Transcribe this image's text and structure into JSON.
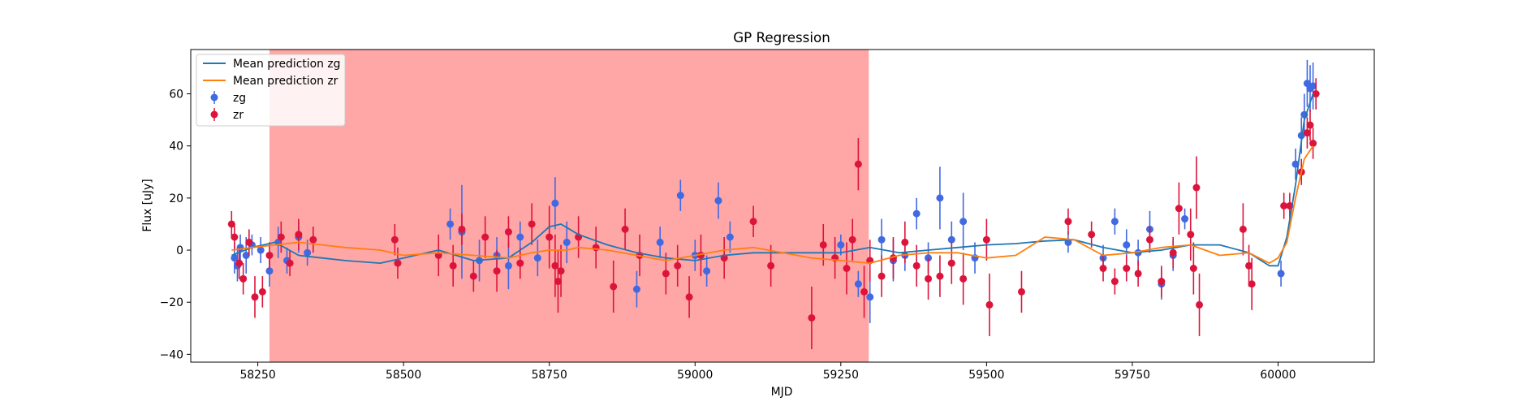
{
  "chart_data": {
    "type": "scatter",
    "title": "GP Regression",
    "xlabel": "MJD",
    "ylabel": "Flux [uJy]",
    "xlim": [
      58135,
      60165
    ],
    "ylim": [
      -43,
      77
    ],
    "xticks": [
      58250,
      58500,
      58750,
      59000,
      59250,
      59500,
      59750,
      60000
    ],
    "yticks": [
      -40,
      -20,
      0,
      20,
      40,
      60
    ],
    "shaded_region": {
      "x": [
        58270,
        59298
      ],
      "color": "#ff0000",
      "alpha": 0.35
    },
    "legend": {
      "location": "top-left",
      "entries": [
        "Mean prediction zg",
        "Mean prediction zr",
        "zg",
        "zr"
      ]
    },
    "series": [
      {
        "name": "Mean prediction zg",
        "kind": "line",
        "color": "#1f77b4",
        "x": [
          58205,
          58240,
          58280,
          58320,
          58360,
          58400,
          58460,
          58500,
          58560,
          58620,
          58680,
          58720,
          58750,
          58770,
          58800,
          58850,
          58900,
          58950,
          59000,
          59050,
          59100,
          59150,
          59200,
          59250,
          59300,
          59350,
          59400,
          59450,
          59500,
          59550,
          59600,
          59650,
          59700,
          59750,
          59800,
          59850,
          59900,
          59950,
          59985,
          60000,
          60015,
          60030,
          60045,
          60060
        ],
        "y": [
          -2,
          1,
          3,
          -2,
          -3,
          -4,
          -5,
          -3,
          0,
          -4,
          -3,
          3,
          9,
          10,
          6,
          2,
          -1,
          -3,
          -4,
          -2,
          -1,
          -1,
          -1,
          -1,
          1,
          -1,
          0,
          1,
          2,
          2.5,
          3.5,
          4,
          1,
          -1,
          0,
          2,
          2,
          -1,
          -6,
          -6,
          5,
          25,
          50,
          60
        ]
      },
      {
        "name": "Mean prediction zr",
        "kind": "line",
        "color": "#ff7f0e",
        "x": [
          58205,
          58240,
          58280,
          58320,
          58360,
          58400,
          58460,
          58500,
          58560,
          58620,
          58680,
          58720,
          58750,
          58780,
          58800,
          58850,
          58900,
          58950,
          59000,
          59050,
          59100,
          59150,
          59200,
          59250,
          59300,
          59350,
          59400,
          59450,
          59500,
          59550,
          59600,
          59650,
          59700,
          59750,
          59800,
          59850,
          59900,
          59950,
          59985,
          60000,
          60015,
          60030,
          60045,
          60060
        ],
        "y": [
          0,
          1,
          2,
          3,
          2,
          1,
          0,
          -2,
          -1,
          -2,
          -3,
          -1,
          0,
          0,
          1,
          0,
          -2,
          -4,
          -2,
          0,
          1,
          -1,
          -3,
          -4,
          -5,
          -2,
          -1,
          -1,
          -3,
          -2,
          5,
          4,
          -2,
          -1,
          1,
          2,
          -2,
          -1,
          -5,
          -3,
          3,
          20,
          35,
          40
        ]
      },
      {
        "name": "zg",
        "kind": "errorbar",
        "color": "#4169e1",
        "x": [
          58210,
          58215,
          58220,
          58230,
          58240,
          58255,
          58270,
          58285,
          58300,
          58320,
          58335,
          58580,
          58600,
          58630,
          58660,
          58680,
          58700,
          58730,
          58760,
          58780,
          58900,
          58940,
          58975,
          59000,
          59020,
          59040,
          59060,
          59250,
          59280,
          59300,
          59320,
          59340,
          59360,
          59380,
          59400,
          59420,
          59440,
          59460,
          59480,
          59640,
          59700,
          59720,
          59740,
          59760,
          59780,
          59800,
          59820,
          59840,
          60005,
          60030,
          60040,
          60045,
          60050,
          60055,
          60060
        ],
        "y": [
          -3,
          -6,
          1,
          -2,
          2,
          0,
          -8,
          3,
          -4,
          5,
          -1,
          10,
          7,
          -4,
          -2,
          -6,
          5,
          -3,
          18,
          3,
          -15,
          3,
          21,
          -2,
          -8,
          19,
          5,
          2,
          -13,
          -18,
          4,
          -4,
          -2,
          14,
          -3,
          20,
          4,
          11,
          -3,
          3,
          -3,
          11,
          2,
          -1,
          8,
          -13,
          -2,
          12,
          -9,
          33,
          44,
          52,
          64,
          62,
          63
        ],
        "err": [
          6,
          6,
          5,
          7,
          4,
          5,
          6,
          6,
          5,
          6,
          5,
          6,
          18,
          8,
          7,
          9,
          6,
          7,
          10,
          8,
          7,
          6,
          6,
          6,
          6,
          7,
          6,
          4,
          5,
          10,
          8,
          8,
          6,
          6,
          6,
          12,
          7,
          11,
          6,
          4,
          5,
          5,
          6,
          5,
          7,
          6,
          6,
          4,
          5,
          6,
          7,
          8,
          9,
          9,
          9
        ]
      },
      {
        "name": "zr",
        "kind": "errorbar",
        "color": "#dc143c",
        "x": [
          58205,
          58210,
          58218,
          58225,
          58235,
          58245,
          58258,
          58270,
          58290,
          58305,
          58320,
          58345,
          58485,
          58490,
          58560,
          58585,
          58600,
          58620,
          58640,
          58660,
          58680,
          58700,
          58720,
          58750,
          58760,
          58765,
          58770,
          58800,
          58830,
          58860,
          58880,
          58905,
          58950,
          58970,
          58990,
          59010,
          59050,
          59100,
          59130,
          59200,
          59220,
          59240,
          59260,
          59270,
          59280,
          59290,
          59300,
          59320,
          59340,
          59360,
          59380,
          59400,
          59420,
          59440,
          59460,
          59500,
          59505,
          59560,
          59640,
          59680,
          59700,
          59720,
          59740,
          59760,
          59780,
          59800,
          59820,
          59830,
          59850,
          59855,
          59860,
          59865,
          59940,
          59950,
          59955,
          60010,
          60020,
          60040,
          60050,
          60055,
          60060,
          60065
        ],
        "y": [
          10,
          5,
          -5,
          -11,
          3,
          -18,
          -16,
          -2,
          5,
          -5,
          6,
          4,
          4,
          -5,
          -2,
          -6,
          8,
          -10,
          5,
          -8,
          7,
          -5,
          10,
          5,
          -6,
          -12,
          -8,
          5,
          1,
          -14,
          8,
          -2,
          -9,
          -6,
          -18,
          -2,
          -3,
          11,
          -6,
          -26,
          2,
          -3,
          -7,
          4,
          33,
          -16,
          -4,
          -10,
          -3,
          3,
          -6,
          -11,
          -10,
          -5,
          -11,
          4,
          -21,
          -16,
          11,
          6,
          -7,
          -12,
          -7,
          -9,
          4,
          -12,
          -1,
          16,
          6,
          -7,
          24,
          -21,
          8,
          -6,
          -13,
          17,
          17,
          30,
          45,
          48,
          41,
          60
        ],
        "err": [
          5,
          5,
          6,
          6,
          5,
          8,
          6,
          5,
          6,
          5,
          6,
          5,
          6,
          6,
          8,
          8,
          6,
          6,
          8,
          8,
          6,
          6,
          8,
          12,
          12,
          12,
          10,
          8,
          8,
          10,
          8,
          8,
          8,
          8,
          8,
          8,
          8,
          6,
          8,
          12,
          8,
          8,
          10,
          8,
          10,
          10,
          8,
          8,
          8,
          8,
          8,
          8,
          8,
          8,
          10,
          8,
          12,
          8,
          5,
          5,
          5,
          5,
          5,
          5,
          5,
          6,
          6,
          10,
          10,
          10,
          12,
          12,
          10,
          8,
          10,
          5,
          5,
          5,
          6,
          6,
          6,
          6
        ]
      }
    ]
  }
}
